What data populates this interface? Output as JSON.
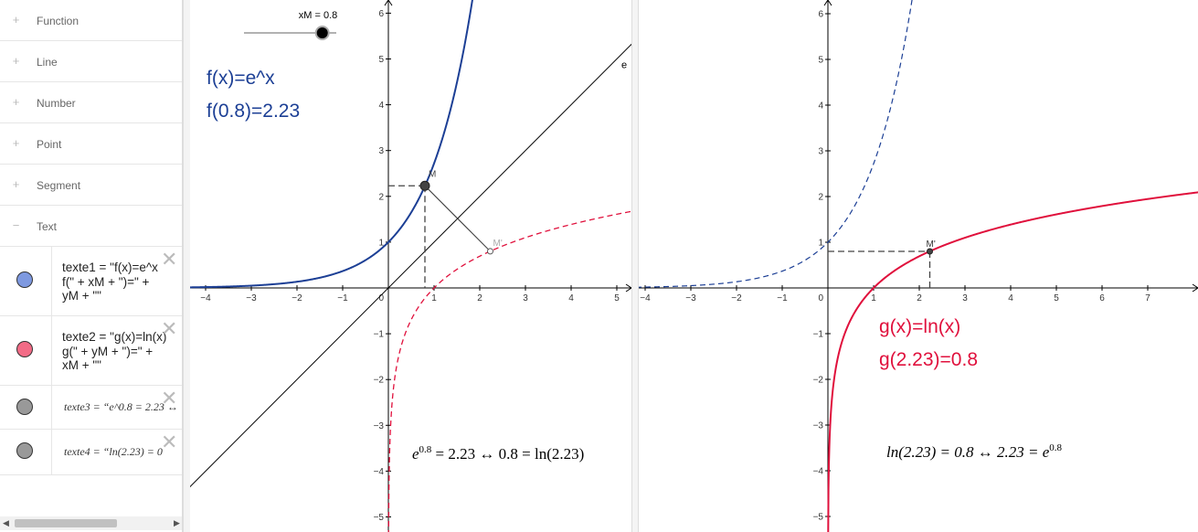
{
  "algebra": {
    "categories": [
      {
        "icon": "plus-icon",
        "label": "Function"
      },
      {
        "icon": "plus-icon",
        "label": "Line"
      },
      {
        "icon": "plus-icon",
        "label": "Number"
      },
      {
        "icon": "plus-icon",
        "label": "Point"
      },
      {
        "icon": "plus-icon",
        "label": "Segment"
      },
      {
        "icon": "minus-icon",
        "label": "Text"
      }
    ],
    "items": [
      {
        "color": "#7e99e0",
        "text": "texte1 = \"f(x)=e^x\nf(\" + xM + \")=\" +\nyM + \"\""
      },
      {
        "color": "#f26b86",
        "text": "texte2 = \"g(x)=ln(x)\ng(\" + yM + \")=\" +\nxM + \"\""
      },
      {
        "color": "#999999",
        "text": "texte3 = “e^0.8 = 2.23 ↔"
      },
      {
        "color": "#999999",
        "text": "texte4 = “ln(2.23) = 0"
      }
    ]
  },
  "slider": {
    "label": "xM = 0.8",
    "value": 0.8,
    "min": -2,
    "max": 1.3
  },
  "graphics1": {
    "text_f_def": "f(x)=e^x",
    "text_f_val": "f(0.8)=2.23",
    "point_M": "M",
    "point_Mprime": "M'",
    "line_label": "e",
    "formula_left": "e",
    "formula_exp": "0.8",
    "formula_right": " = 2.23 ↔ 0.8 = ln(2.23)",
    "x_ticks": [
      "−4",
      "−3",
      "−2",
      "−1",
      "1",
      "2",
      "3",
      "4",
      "5"
    ],
    "y_ticks": [
      "6",
      "5",
      "4",
      "3",
      "2",
      "1",
      "−1",
      "−2",
      "−3",
      "−4",
      "−5"
    ],
    "origin": "0"
  },
  "graphics2": {
    "text_g_def": "g(x)=ln(x)",
    "text_g_val": "g(2.23)=0.8",
    "point_Mprime": "M'",
    "formula_left": "ln(2.23) = 0.8 ↔ 2.23 = e",
    "formula_exp": "0.8",
    "x_ticks": [
      "−4",
      "−3",
      "−2",
      "−1",
      "1",
      "2",
      "3",
      "4",
      "5",
      "6",
      "7"
    ],
    "y_ticks": [
      "6",
      "5",
      "4",
      "3",
      "2",
      "1",
      "−1",
      "−2",
      "−3",
      "−4",
      "−5"
    ],
    "origin": "0"
  },
  "colors": {
    "f_curve": "#1c3f95",
    "g_curve": "#e0103c",
    "text_blue": "#1c3f95",
    "text_red": "#e0103c"
  },
  "point_values": {
    "xM": 0.8,
    "yM": 2.23
  }
}
